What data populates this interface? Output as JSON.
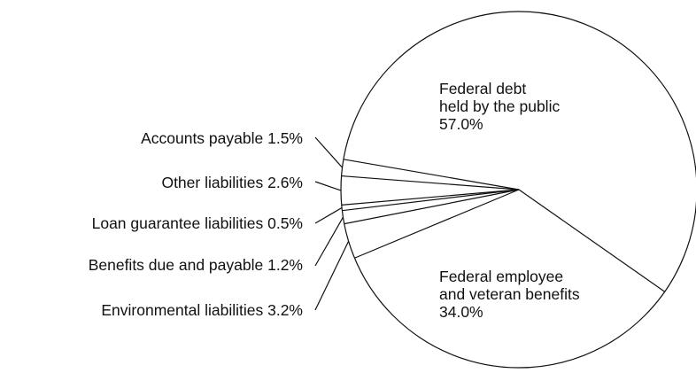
{
  "chart_data": {
    "type": "pie",
    "title": "",
    "slices": [
      {
        "label": "Federal debt held by the public",
        "lines": [
          "Federal debt",
          "held by the public"
        ],
        "value": 57.0,
        "display": "57.0%"
      },
      {
        "label": "Federal employee and veteran benefits",
        "lines": [
          "Federal employee",
          "and veteran benefits"
        ],
        "value": 34.0,
        "display": "34.0%"
      },
      {
        "label": "Environmental liabilities",
        "value": 3.2,
        "display": "3.2%"
      },
      {
        "label": "Benefits due and payable",
        "value": 1.2,
        "display": "1.2%"
      },
      {
        "label": "Loan guarantee liabilities",
        "value": 0.5,
        "display": "0.5%"
      },
      {
        "label": "Other liabilities",
        "value": 2.6,
        "display": "2.6%"
      },
      {
        "label": "Accounts payable",
        "value": 1.5,
        "display": "1.5%"
      }
    ],
    "colors": {
      "fill": "#ffffff",
      "stroke": "#111111",
      "text": "#111111"
    }
  }
}
